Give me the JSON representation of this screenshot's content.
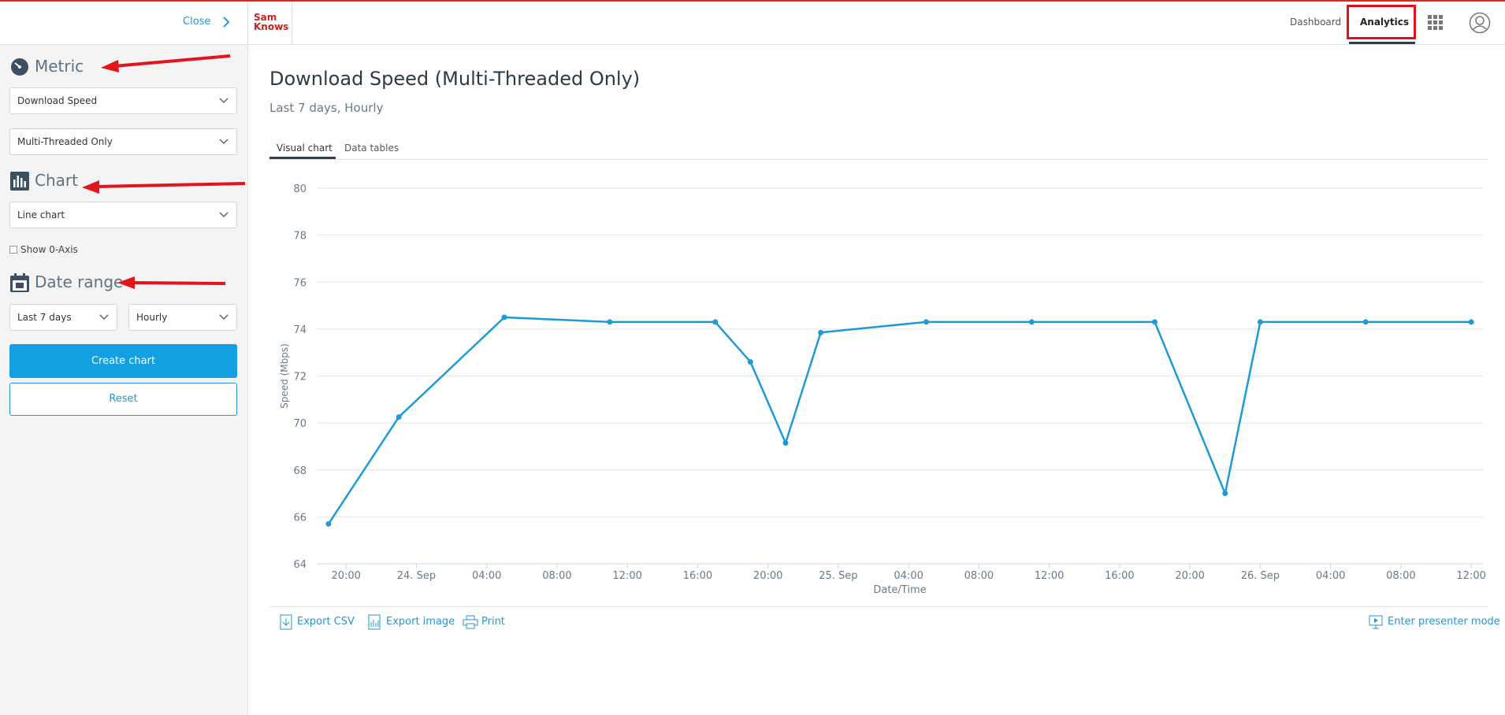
{
  "header": {
    "close": "Close",
    "logo": [
      "Sam",
      "Knows"
    ],
    "nav": [
      "Dashboard",
      "Analytics"
    ]
  },
  "sidebar": {
    "metric": {
      "heading": "Metric",
      "selects": [
        "Download Speed",
        "Multi-Threaded Only"
      ]
    },
    "chart": {
      "heading": "Chart",
      "select": "Line chart",
      "checkbox": "Show 0-Axis"
    },
    "date_range": {
      "heading": "Date range",
      "selects": [
        "Last 7 days",
        "Hourly"
      ]
    },
    "buttons": [
      "Create chart",
      "Reset"
    ]
  },
  "tabs": [
    "Visual chart",
    "Data tables"
  ],
  "actions": [
    "Export CSV",
    "Export image",
    "Print",
    "Enter presenter mode"
  ],
  "chart_data": {
    "type": "line",
    "title": "Download Speed (Multi-Threaded Only)",
    "subtitle": "Last 7 days, Hourly",
    "x_label": "Date/Time",
    "y_label": "Speed (Mbps)",
    "color": "#1e9ad6",
    "grid": true,
    "x": [
      "23 Sep 19:00",
      "23 Sep 23:00",
      "24 Sep 05:00",
      "24 Sep 11:00",
      "24 Sep 17:00",
      "24 Sep 19:00",
      "24 Sep 21:00",
      "24 Sep 23:00",
      "25 Sep 05:00",
      "25 Sep 11:00",
      "25 Sep 18:00",
      "25 Sep 22:00",
      "26 Sep 00:00",
      "26 Sep 06:00",
      "26 Sep 12:00"
    ],
    "values": [
      65.7,
      70.25,
      74.5,
      74.3,
      74.3,
      72.6,
      69.15,
      73.85,
      74.3,
      74.3,
      74.3,
      67.0,
      74.3,
      74.3,
      74.3
    ],
    "xlim": [
      "23 Sep 18:20",
      "26 Sep 12:40"
    ],
    "xticks": [
      {
        "value": "23 Sep 20:00",
        "label": "20:00"
      },
      {
        "value": "24 Sep 00:00",
        "label": "24. Sep"
      },
      {
        "value": "24 Sep 04:00",
        "label": "04:00"
      },
      {
        "value": "24 Sep 08:00",
        "label": "08:00"
      },
      {
        "value": "24 Sep 12:00",
        "label": "12:00"
      },
      {
        "value": "24 Sep 16:00",
        "label": "16:00"
      },
      {
        "value": "24 Sep 20:00",
        "label": "20:00"
      },
      {
        "value": "25 Sep 00:00",
        "label": "25. Sep"
      },
      {
        "value": "25 Sep 04:00",
        "label": "04:00"
      },
      {
        "value": "25 Sep 08:00",
        "label": "08:00"
      },
      {
        "value": "25 Sep 12:00",
        "label": "12:00"
      },
      {
        "value": "25 Sep 16:00",
        "label": "16:00"
      },
      {
        "value": "25 Sep 20:00",
        "label": "20:00"
      },
      {
        "value": "26 Sep 00:00",
        "label": "26. Sep"
      },
      {
        "value": "26 Sep 04:00",
        "label": "04:00"
      },
      {
        "value": "26 Sep 08:00",
        "label": "08:00"
      },
      {
        "value": "26 Sep 12:00",
        "label": "12:00"
      }
    ],
    "ylim": [
      64,
      80
    ],
    "yticks": [
      64,
      66,
      68,
      70,
      72,
      74,
      76,
      78,
      80
    ]
  }
}
